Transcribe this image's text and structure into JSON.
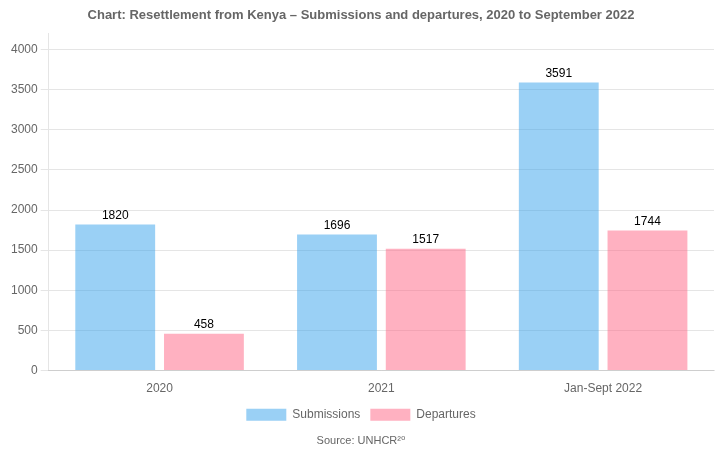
{
  "chart_data": {
    "type": "bar",
    "title": "Chart: Resettlement from Kenya – Submissions and departures, 2020 to September 2022",
    "annotations": [
      "Source: UNHCR²⁰"
    ],
    "categories": [
      "2020",
      "2021",
      "Jan-Sept 2022"
    ],
    "series": [
      {
        "name": "Submissions",
        "values": [
          1820,
          1696,
          3591
        ]
      },
      {
        "name": "Departures",
        "values": [
          458,
          1517,
          1744
        ]
      }
    ],
    "ylim": [
      0,
      4200
    ],
    "yticks": [
      0,
      500,
      1000,
      1500,
      2000,
      2500,
      3000,
      3500,
      4000
    ],
    "grid": true,
    "legend": "bottom",
    "data_labels": true
  }
}
